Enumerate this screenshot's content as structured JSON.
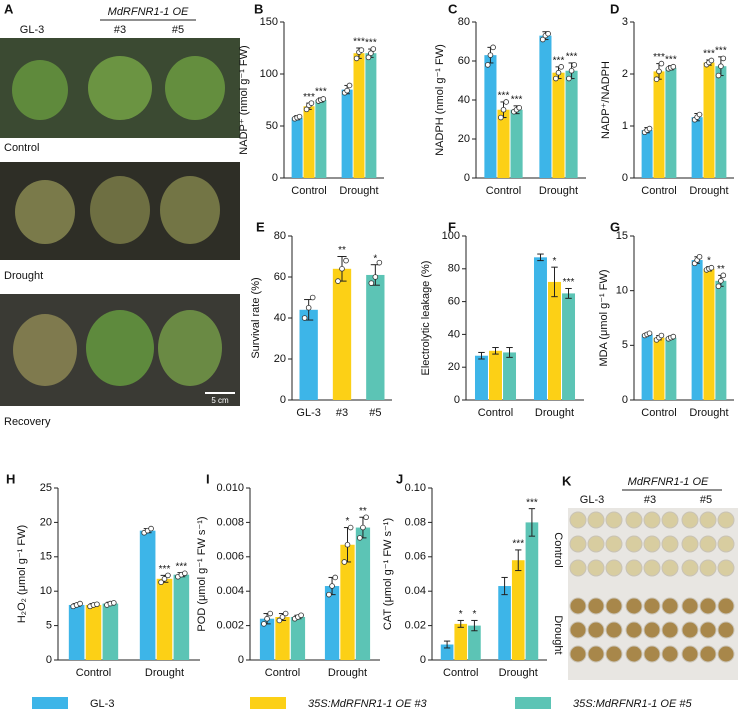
{
  "photos": {
    "label": "A",
    "genotypes": [
      "GL-3",
      "#3",
      "#5"
    ],
    "oe": "MdRFNR1-1 OE",
    "rows": [
      "Control",
      "Drought",
      "Recovery"
    ],
    "scale": "5 cm"
  },
  "plates": {
    "label": "K",
    "genotypes": [
      "GL-3",
      "#3",
      "#5"
    ],
    "oe": "MdRFNR1-1 OE",
    "conditions": [
      "Control",
      "Drought"
    ]
  },
  "legend": {
    "items": [
      {
        "name": "GL-3",
        "color": "#3db5e8"
      },
      {
        "name": "35S:MdRFNR1-1 OE #3",
        "color": "#fcd016"
      },
      {
        "name": "35S:MdRFNR1-1 OE #5",
        "color": "#5cc4b5"
      }
    ]
  },
  "chart_data": [
    {
      "type": "bar",
      "label": "B",
      "ylabel": "NADP⁺ (nmol g⁻¹ FW)",
      "categories": [
        "Control",
        "Drought"
      ],
      "ylim": [
        0,
        150
      ],
      "yticks": [
        0,
        50,
        100,
        150
      ],
      "series": [
        {
          "values": [
            58,
            85
          ],
          "errors": [
            2,
            4
          ],
          "points": [
            [
              57,
              58,
              59
            ],
            [
              82,
              84,
              89
            ]
          ],
          "stars": [
            null,
            null
          ]
        },
        {
          "values": [
            69,
            120
          ],
          "errors": [
            3,
            5
          ],
          "points": [
            [
              66,
              70,
              72
            ],
            [
              115,
              121,
              123
            ]
          ],
          "stars": [
            "***",
            "***"
          ]
        },
        {
          "values": [
            75,
            120
          ],
          "errors": [
            2,
            4
          ],
          "points": [
            [
              74,
              75,
              76
            ],
            [
              116,
              120,
              124
            ]
          ],
          "stars": [
            "***",
            "***"
          ]
        }
      ]
    },
    {
      "type": "bar",
      "label": "C",
      "ylabel": "NADPH (nmol g⁻¹ FW)",
      "categories": [
        "Control",
        "Drought"
      ],
      "ylim": [
        0,
        80
      ],
      "yticks": [
        0,
        20,
        40,
        60,
        80
      ],
      "series": [
        {
          "values": [
            63,
            73
          ],
          "errors": [
            4,
            2
          ],
          "points": [
            [
              58,
              63,
              67
            ],
            [
              71,
              73,
              74
            ]
          ],
          "stars": [
            null,
            null
          ]
        },
        {
          "values": [
            35,
            54
          ],
          "errors": [
            4,
            3
          ],
          "points": [
            [
              31,
              35,
              39
            ],
            [
              51,
              54,
              57
            ]
          ],
          "stars": [
            "***",
            "***"
          ]
        },
        {
          "values": [
            35,
            55
          ],
          "errors": [
            2,
            4
          ],
          "points": [
            [
              34,
              35,
              36
            ],
            [
              51,
              55,
              58
            ]
          ],
          "stars": [
            "***",
            "***"
          ]
        }
      ]
    },
    {
      "type": "bar",
      "label": "D",
      "ylabel": "NADP⁺/NADPH",
      "categories": [
        "Control",
        "Drought"
      ],
      "ylim": [
        0,
        3
      ],
      "yticks": [
        0,
        1,
        2,
        3
      ],
      "series": [
        {
          "values": [
            0.92,
            1.17
          ],
          "errors": [
            0.05,
            0.07
          ],
          "points": [
            [
              0.88,
              0.92,
              0.95
            ],
            [
              1.12,
              1.17,
              1.22
            ]
          ],
          "stars": [
            null,
            null
          ]
        },
        {
          "values": [
            2.05,
            2.22
          ],
          "errors": [
            0.15,
            0.05
          ],
          "points": [
            [
              1.9,
              2.05,
              2.2
            ],
            [
              2.18,
              2.22,
              2.26
            ]
          ],
          "stars": [
            "***",
            "***"
          ]
        },
        {
          "values": [
            2.12,
            2.15
          ],
          "errors": [
            0.04,
            0.18
          ],
          "points": [
            [
              2.1,
              2.12,
              2.14
            ],
            [
              1.97,
              2.15,
              2.3
            ]
          ],
          "stars": [
            "***",
            "***"
          ]
        }
      ]
    },
    {
      "type": "bar",
      "label": "E",
      "ylabel": "Survival rate (%)",
      "categories": [
        "GL-3",
        "#3",
        "#5"
      ],
      "ylim": [
        0,
        80
      ],
      "yticks": [
        0,
        20,
        40,
        60,
        80
      ],
      "values": [
        44,
        64,
        61
      ],
      "errors": [
        5,
        6,
        5
      ],
      "points": [
        [
          40,
          45,
          50
        ],
        [
          58,
          64,
          68
        ],
        [
          57,
          60,
          67
        ]
      ],
      "stars": [
        null,
        "**",
        "*"
      ]
    },
    {
      "type": "bar",
      "label": "F",
      "ylabel": "Electrolytic leakage (%)",
      "categories": [
        "Control",
        "Drought"
      ],
      "ylim": [
        0,
        100
      ],
      "yticks": [
        0,
        20,
        40,
        60,
        80,
        100
      ],
      "series": [
        {
          "values": [
            27,
            87
          ],
          "errors": [
            2,
            2
          ],
          "stars": [
            null,
            null
          ]
        },
        {
          "values": [
            30,
            72
          ],
          "errors": [
            2,
            9
          ],
          "stars": [
            null,
            "*"
          ]
        },
        {
          "values": [
            29,
            65
          ],
          "errors": [
            3,
            3
          ],
          "stars": [
            null,
            "***"
          ]
        }
      ]
    },
    {
      "type": "bar",
      "label": "G",
      "ylabel": "MDA (μmol g⁻¹ FW)",
      "categories": [
        "Control",
        "Drought"
      ],
      "ylim": [
        0,
        15
      ],
      "yticks": [
        0,
        5,
        10,
        15
      ],
      "series": [
        {
          "values": [
            6.0,
            12.8
          ],
          "errors": [
            0.1,
            0.3
          ],
          "points": [
            [
              5.9,
              6.0,
              6.1
            ],
            [
              12.5,
              12.8,
              13.1
            ]
          ],
          "stars": [
            null,
            null
          ]
        },
        {
          "values": [
            5.7,
            12.0
          ],
          "errors": [
            0.2,
            0.2
          ],
          "points": [
            [
              5.5,
              5.7,
              5.9
            ],
            [
              11.9,
              12.0,
              12.1
            ]
          ],
          "stars": [
            null,
            "*"
          ]
        },
        {
          "values": [
            5.7,
            10.9
          ],
          "errors": [
            0.15,
            0.5
          ],
          "points": [
            [
              5.6,
              5.7,
              5.8
            ],
            [
              10.4,
              10.9,
              11.4
            ]
          ],
          "stars": [
            null,
            "**"
          ]
        }
      ]
    },
    {
      "type": "bar",
      "label": "H",
      "ylabel": "H₂O₂ (μmol g⁻¹ FW)",
      "categories": [
        "Control",
        "Drought"
      ],
      "ylim": [
        0,
        25
      ],
      "yticks": [
        0,
        5,
        10,
        15,
        20,
        25
      ],
      "series": [
        {
          "values": [
            8.0,
            18.8
          ],
          "errors": [
            0.2,
            0.3
          ],
          "points": [
            [
              7.8,
              8.0,
              8.2
            ],
            [
              18.5,
              18.8,
              19.1
            ]
          ],
          "stars": [
            null,
            null
          ]
        },
        {
          "values": [
            8.0,
            11.8
          ],
          "errors": [
            0.2,
            0.5
          ],
          "points": [
            [
              7.8,
              8.0,
              8.1
            ],
            [
              11.3,
              11.8,
              12.3
            ]
          ],
          "stars": [
            null,
            "***"
          ]
        },
        {
          "values": [
            8.2,
            12.4
          ],
          "errors": [
            0.2,
            0.3
          ],
          "points": [
            [
              8.0,
              8.2,
              8.3
            ],
            [
              12.1,
              12.4,
              12.6
            ]
          ],
          "stars": [
            null,
            "***"
          ]
        }
      ]
    },
    {
      "type": "bar",
      "label": "I",
      "ylabel": "POD (μmol g⁻¹ FW s⁻¹)",
      "categories": [
        "Control",
        "Drought"
      ],
      "ylim": [
        0,
        0.01
      ],
      "yticks": [
        0,
        0.002,
        0.004,
        0.006,
        0.008,
        {
          "value": 0.01,
          "label": "0.010"
        }
      ],
      "series": [
        {
          "values": [
            0.0024,
            0.0043
          ],
          "errors": [
            0.0003,
            0.0005
          ],
          "points": [
            [
              0.0021,
              0.0024,
              0.0027
            ],
            [
              0.0038,
              0.0043,
              0.0048
            ]
          ],
          "stars": [
            null,
            null
          ]
        },
        {
          "values": [
            0.0025,
            0.0067
          ],
          "errors": [
            0.0002,
            0.001
          ],
          "points": [
            [
              0.0023,
              0.0025,
              0.0027
            ],
            [
              0.0057,
              0.0067,
              0.0077
            ]
          ],
          "stars": [
            null,
            "*"
          ]
        },
        {
          "values": [
            0.0025,
            0.0077
          ],
          "errors": [
            0.0001,
            0.0006
          ],
          "points": [
            [
              0.0024,
              0.0025,
              0.0026
            ],
            [
              0.0071,
              0.0077,
              0.0083
            ]
          ],
          "stars": [
            null,
            "**"
          ]
        }
      ]
    },
    {
      "type": "bar",
      "label": "J",
      "ylabel": "CAT (μmol g⁻¹ FW s⁻¹)",
      "categories": [
        "Control",
        "Drought"
      ],
      "ylim": [
        0,
        0.1
      ],
      "yticks": [
        0,
        0.02,
        0.04,
        0.06,
        0.08,
        {
          "value": 0.1,
          "label": "0.10"
        }
      ],
      "series": [
        {
          "values": [
            0.009,
            0.043
          ],
          "errors": [
            0.002,
            0.005
          ],
          "stars": [
            null,
            null
          ]
        },
        {
          "values": [
            0.021,
            0.058
          ],
          "errors": [
            0.002,
            0.006
          ],
          "stars": [
            "*",
            "***"
          ]
        },
        {
          "values": [
            0.02,
            0.08
          ],
          "errors": [
            0.003,
            0.008
          ],
          "stars": [
            "*",
            "***"
          ]
        }
      ]
    }
  ]
}
